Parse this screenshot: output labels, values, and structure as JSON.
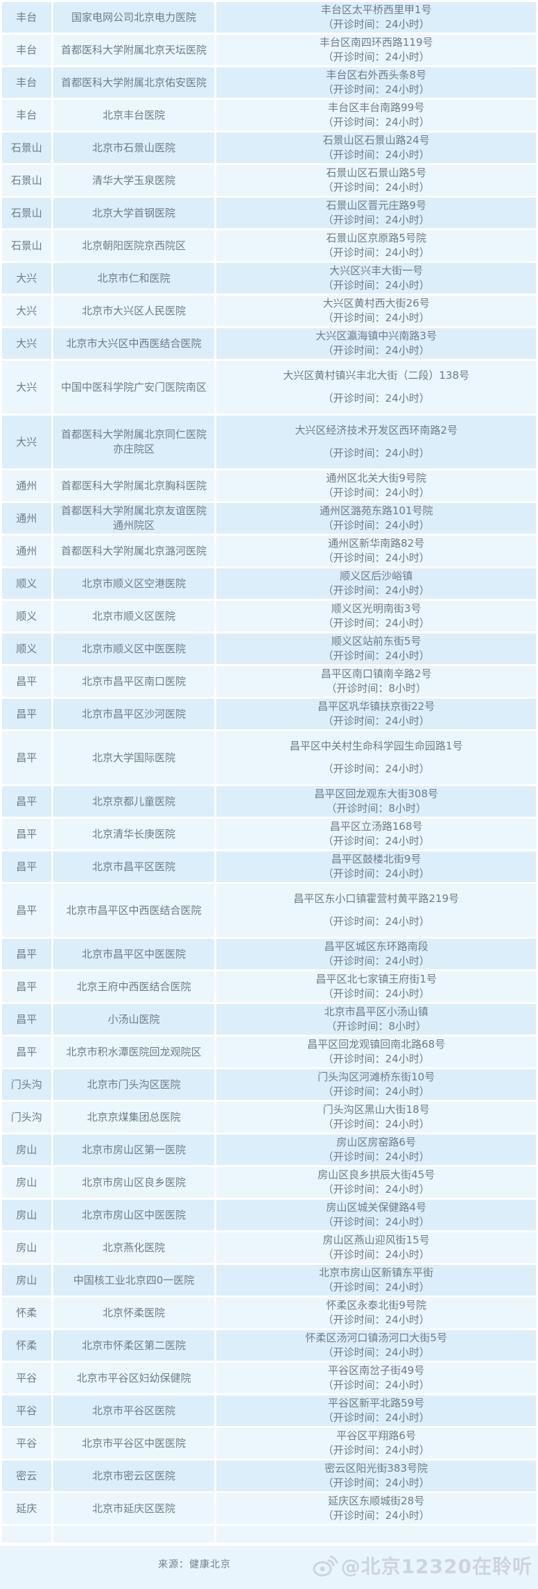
{
  "table": {
    "rows": [
      {
        "district": "丰台",
        "hospital": "国家电网公司北京电力医院",
        "address": "丰台区太平桥西里甲1号",
        "hours": "（开诊时间：24小时）"
      },
      {
        "district": "丰台",
        "hospital": "首都医科大学附属北京天坛医院",
        "address": "丰台区南四环西路119号",
        "hours": "（开诊时间：24小时）"
      },
      {
        "district": "丰台",
        "hospital": "首都医科大学附属北京佑安医院",
        "address": "丰台区右外西头条8号",
        "hours": "（开诊时间：24小时）"
      },
      {
        "district": "丰台",
        "hospital": "北京丰台医院",
        "address": "丰台区丰台南路99号",
        "hours": "（开诊时间：24小时）"
      },
      {
        "district": "石景山",
        "hospital": "北京市石景山医院",
        "address": "石景山区石景山路24号",
        "hours": "（开诊时间：24小时）"
      },
      {
        "district": "石景山",
        "hospital": "清华大学玉泉医院",
        "address": "石景山区石景山路5号",
        "hours": "（开诊时间：24小时）"
      },
      {
        "district": "石景山",
        "hospital": "北京大学首钢医院",
        "address": "石景山区晋元庄路9号",
        "hours": "（开诊时间：24小时）"
      },
      {
        "district": "石景山",
        "hospital": "北京朝阳医院京西院区",
        "address": "石景山区京原路5号院",
        "hours": "（开诊时间：24小时）"
      },
      {
        "district": "大兴",
        "hospital": "北京市仁和医院",
        "address": "大兴区兴丰大街一号",
        "hours": "（开诊时间：24小时）"
      },
      {
        "district": "大兴",
        "hospital": "北京市大兴区人民医院",
        "address": "大兴区黄村西大街26号",
        "hours": "（开诊时间：24小时）"
      },
      {
        "district": "大兴",
        "hospital": "北京市大兴区中西医结合医院",
        "address": "大兴区瀛海镇中兴南路3号",
        "hours": "（开诊时间：24小时）"
      },
      {
        "district": "大兴",
        "hospital": "中国中医科学院广安门医院南区",
        "address": "大兴区黄村镇兴丰北大街（二段）138号",
        "hours": "（开诊时间：24小时）"
      },
      {
        "district": "大兴",
        "hospital": "首都医科大学附属北京同仁医院亦庄院区",
        "address": "大兴区经济技术开发区西环南路2号",
        "hours": "（开诊时间：24小时）"
      },
      {
        "district": "通州",
        "hospital": "首都医科大学附属北京胸科医院",
        "address": "通州区北关大街9号院",
        "hours": "（开诊时间：24小时）"
      },
      {
        "district": "通州",
        "hospital": "首都医科大学附属北京友谊医院通州院区",
        "address": "通州区潞苑东路101号院",
        "hours": "（开诊时间：24小时）"
      },
      {
        "district": "通州",
        "hospital": "首都医科大学附属北京潞河医院",
        "address": "通州区新华南路82号",
        "hours": "（开诊时间：24小时）"
      },
      {
        "district": "顺义",
        "hospital": "北京市顺义区空港医院",
        "address": "顺义区后沙峪镇",
        "hours": "（开诊时间：24小时）"
      },
      {
        "district": "顺义",
        "hospital": "北京市顺义区医院",
        "address": "顺义区光明南街3号",
        "hours": "（开诊时间：24小时）"
      },
      {
        "district": "顺义",
        "hospital": "北京市顺义区中医医院",
        "address": "顺义区站前东街5号",
        "hours": "（开诊时间：24小时）"
      },
      {
        "district": "昌平",
        "hospital": "北京市昌平区南口医院",
        "address": "昌平区南口镇南辛路2号",
        "hours": "（开诊时间：8小时）"
      },
      {
        "district": "昌平",
        "hospital": "北京市昌平区沙河医院",
        "address": "昌平区巩华镇扶京街22号",
        "hours": "（开诊时间：24小时）"
      },
      {
        "district": "昌平",
        "hospital": "北京大学国际医院",
        "address": "昌平区中关村生命科学园生命园路1号",
        "hours": "（开诊时间：24小时）"
      },
      {
        "district": "昌平",
        "hospital": "北京京都儿童医院",
        "address": "昌平区回龙观东大街308号",
        "hours": "（开诊时间：8小时）"
      },
      {
        "district": "昌平",
        "hospital": "北京清华长庚医院",
        "address": "昌平区立汤路168号",
        "hours": "（开诊时间：24小时）"
      },
      {
        "district": "昌平",
        "hospital": "北京市昌平区医院",
        "address": "昌平区鼓楼北街9号",
        "hours": "（开诊时间：24小时）"
      },
      {
        "district": "昌平",
        "hospital": "北京市昌平区中西医结合医院",
        "address": "昌平区东小口镇霍营村黄平路219号",
        "hours": "（开诊时间：24小时）"
      },
      {
        "district": "昌平",
        "hospital": "北京市昌平区中医医院",
        "address": "昌平区城区东环路南段",
        "hours": "（开诊时间：24小时）"
      },
      {
        "district": "昌平",
        "hospital": "北京王府中西医结合医院",
        "address": "昌平区北七家镇王府街1号",
        "hours": "（开诊时间：24小时）"
      },
      {
        "district": "昌平",
        "hospital": "小汤山医院",
        "address": "北京市昌平区小汤山镇",
        "hours": "（开诊时间：8小时）"
      },
      {
        "district": "昌平",
        "hospital": "北京市积水潭医院回龙观院区",
        "address": "昌平区回龙观镇回南北路68号",
        "hours": "（开诊时间：24小时）"
      },
      {
        "district": "门头沟",
        "hospital": "北京市门头沟区医院",
        "address": "门头沟区河滩桥东街10号",
        "hours": "（开诊时间：24小时）"
      },
      {
        "district": "门头沟",
        "hospital": "北京京煤集团总医院",
        "address": "门头沟区黑山大街18号",
        "hours": "（开诊时间：24小时）"
      },
      {
        "district": "房山",
        "hospital": "北京市房山区第一医院",
        "address": "房山区房窑路6号",
        "hours": "（开诊时间：24小时）"
      },
      {
        "district": "房山",
        "hospital": "北京市房山区良乡医院",
        "address": "房山区良乡拱辰大街45号",
        "hours": "（开诊时间：24小时）"
      },
      {
        "district": "房山",
        "hospital": "北京市房山区中医医院",
        "address": "房山区城关保健路4号",
        "hours": "（开诊时间：24小时）"
      },
      {
        "district": "房山",
        "hospital": "北京燕化医院",
        "address": "房山区燕山迎风街15号",
        "hours": "（开诊时间：24小时）"
      },
      {
        "district": "房山",
        "hospital": "中国核工业北京四0一医院",
        "address": "北京市房山区新镇东平街",
        "hours": "（开诊时间：24小时）"
      },
      {
        "district": "怀柔",
        "hospital": "北京怀柔医院",
        "address": "怀柔区永泰北街9号院",
        "hours": "（开诊时间：24小时）"
      },
      {
        "district": "怀柔",
        "hospital": "北京市怀柔区第二医院",
        "address": "怀柔区汤河口镇汤河口大街5号",
        "hours": "（开诊时间：24小时）"
      },
      {
        "district": "平谷",
        "hospital": "北京市平谷区妇幼保健院",
        "address": "平谷区南岔子街49号",
        "hours": "（开诊时间：24小时）"
      },
      {
        "district": "平谷",
        "hospital": "北京市平谷区医院",
        "address": "平谷区新平北路59号",
        "hours": "（开诊时间：24小时）"
      },
      {
        "district": "平谷",
        "hospital": "北京市平谷区中医医院",
        "address": "平谷区平翔路6号",
        "hours": "（开诊时间：24小时）"
      },
      {
        "district": "密云",
        "hospital": "北京市密云区医院",
        "address": "密云区阳光街383号院",
        "hours": "（开诊时间：24小时）"
      },
      {
        "district": "延庆",
        "hospital": "北京市延庆区医院",
        "address": "延庆区东顺城街28号",
        "hours": "（开诊时间：24小时）"
      }
    ]
  },
  "footer": {
    "source": "来源：健康北京",
    "watermark": "@北京12320在聆听"
  },
  "colors": {
    "row_odd": "#dceef9",
    "row_even": "#ebf6fd",
    "separator": "#ffffff",
    "text": "#6e7c88",
    "watermark": "#ccd3d9",
    "footer_bg": "#e9f5fc"
  }
}
